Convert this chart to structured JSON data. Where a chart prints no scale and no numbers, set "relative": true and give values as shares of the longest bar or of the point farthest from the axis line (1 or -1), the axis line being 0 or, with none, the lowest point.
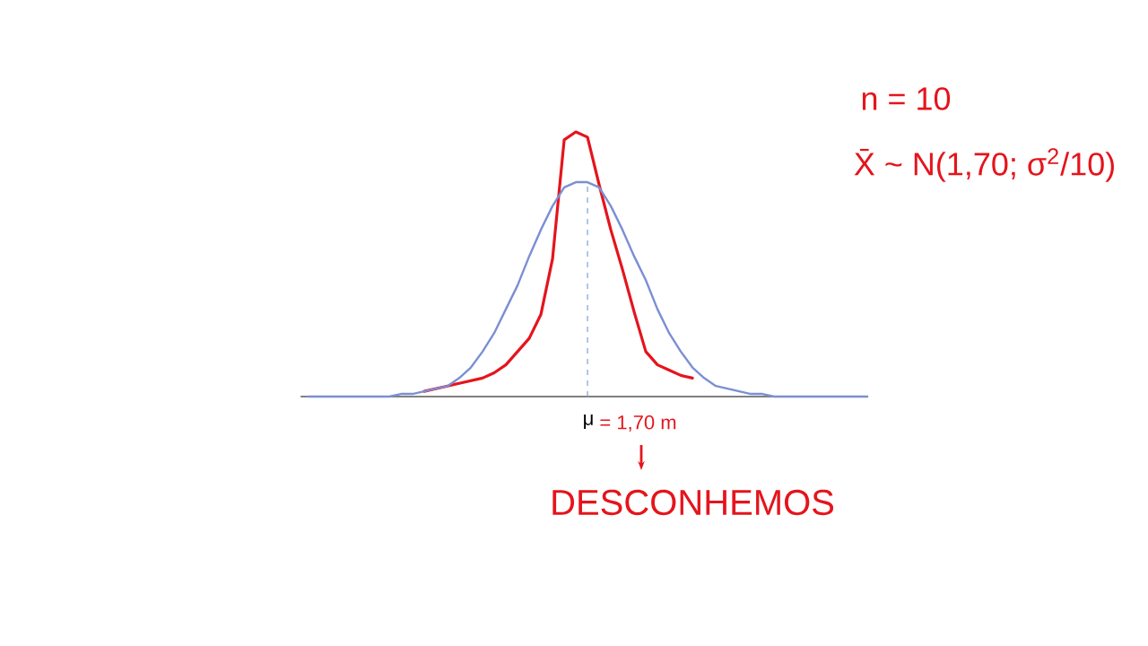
{
  "chart_data": {
    "type": "line",
    "relative": true,
    "categories": [
      null,
      null,
      null,
      null,
      null,
      null,
      null,
      null,
      null,
      null,
      null,
      null,
      null,
      null,
      null,
      null,
      null,
      null,
      null,
      null,
      null,
      null,
      null,
      null,
      null,
      null,
      null,
      null,
      null,
      null,
      null,
      null,
      null,
      null,
      null,
      null,
      null,
      null,
      null,
      null,
      null,
      null,
      null,
      null,
      null,
      null,
      null,
      null,
      null
    ],
    "series": [
      {
        "color": "#7b8fd4",
        "values": [
          0,
          0,
          0,
          0,
          0,
          0,
          0,
          0,
          0.01,
          0.01,
          0.02,
          0.03,
          0.04,
          0.07,
          0.11,
          0.17,
          0.24,
          0.33,
          0.42,
          0.53,
          0.63,
          0.72,
          0.79,
          0.81,
          0.81,
          0.79,
          0.72,
          0.63,
          0.53,
          0.44,
          0.33,
          0.24,
          0.17,
          0.11,
          0.07,
          0.04,
          0.03,
          0.02,
          0.01,
          0.01,
          0,
          0,
          0,
          0,
          0,
          0,
          0,
          0,
          0
        ]
      },
      {
        "color": "#e5141c",
        "values": [
          null,
          null,
          null,
          null,
          null,
          null,
          null,
          null,
          null,
          null,
          0.02,
          0.03,
          0.04,
          0.05,
          0.06,
          0.07,
          0.09,
          0.12,
          0.17,
          0.22,
          0.31,
          0.52,
          0.97,
          1.0,
          0.98,
          0.8,
          0.63,
          0.48,
          0.32,
          0.17,
          0.12,
          0.1,
          0.08,
          0.07,
          null,
          null,
          null,
          null,
          null,
          null,
          null,
          null,
          null,
          null,
          null,
          null,
          null,
          null,
          null
        ]
      }
    ],
    "marker": "none",
    "line_style": "solid",
    "annotations": [
      "n = 10",
      "X̄ ~ N(1,70; σ$^{2}$/10)",
      "μ",
      "= 1,70 m",
      "DESCONHEMOS"
    ]
  }
}
